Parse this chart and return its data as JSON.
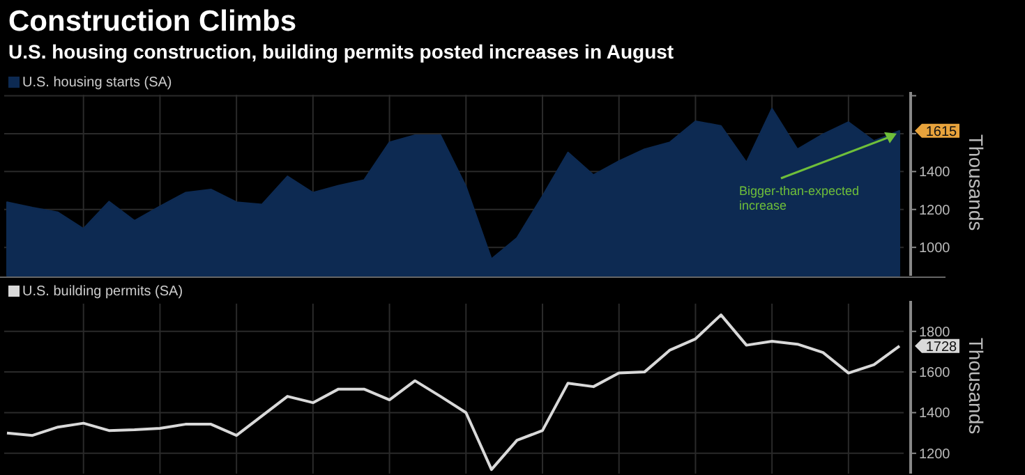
{
  "chart_data": [
    {
      "type": "area",
      "title": "Construction Climbs",
      "subtitle": "U.S. housing construction, building permits posted increases in August",
      "ylabel": "Thousands",
      "legend": "top left",
      "grid": true,
      "categories": [
        null,
        null,
        null,
        null,
        null,
        null,
        null,
        null,
        null,
        null,
        null,
        null,
        null,
        null,
        null,
        null,
        null,
        null,
        null,
        null,
        null,
        null,
        null,
        null,
        null,
        null,
        null,
        null,
        null,
        null,
        null,
        null,
        null,
        null,
        null,
        null
      ],
      "series": [
        {
          "name": "U.S. housing starts (SA)",
          "color": "#0d2a52",
          "values": [
            1239,
            1210,
            1185,
            1099,
            1242,
            1141,
            1217,
            1289,
            1306,
            1239,
            1227,
            1375,
            1289,
            1326,
            1355,
            1555,
            1592,
            1592,
            1321,
            939,
            1050,
            1271,
            1501,
            1382,
            1456,
            1518,
            1555,
            1666,
            1641,
            1449,
            1733,
            1518,
            1597,
            1661,
            1562,
            1615
          ],
          "value_labels": [
            null,
            null,
            null,
            null,
            null,
            null,
            null,
            null,
            null,
            null,
            null,
            null,
            null,
            null,
            null,
            null,
            null,
            null,
            null,
            null,
            null,
            null,
            null,
            null,
            null,
            null,
            null,
            null,
            null,
            null,
            null,
            null,
            null,
            null,
            null,
            "1615"
          ]
        }
      ],
      "ylim": [
        850,
        1820
      ],
      "yticks": [
        1000,
        1200,
        1400,
        {
          "value": 1600,
          "label": null
        },
        {
          "value": 1800,
          "label": null
        }
      ],
      "annotations": [
        "Bigger-than-expected increase"
      ]
    },
    {
      "type": "line",
      "ylabel": "Thousands",
      "legend": "top left",
      "grid": true,
      "categories": [
        null,
        null,
        null,
        null,
        null,
        null,
        null,
        null,
        null,
        null,
        null,
        null,
        null,
        null,
        null,
        null,
        null,
        null,
        null,
        null,
        null,
        null,
        null,
        null,
        null,
        null,
        null,
        null,
        null,
        null,
        null,
        null,
        null,
        null,
        null,
        null
      ],
      "series": [
        {
          "name": "U.S. building permits (SA)",
          "color": "#d9d9d9",
          "values": [
            1300,
            1288,
            1329,
            1348,
            1312,
            1316,
            1323,
            1343,
            1343,
            1288,
            1384,
            1480,
            1449,
            1516,
            1516,
            1463,
            1557,
            1480,
            1400,
            1120,
            1264,
            1312,
            1545,
            1528,
            1595,
            1600,
            1708,
            1763,
            1881,
            1732,
            1751,
            1737,
            1696,
            1595,
            1636,
            1728
          ],
          "value_labels": [
            null,
            null,
            null,
            null,
            null,
            null,
            null,
            null,
            null,
            null,
            null,
            null,
            null,
            null,
            null,
            null,
            null,
            null,
            null,
            null,
            null,
            null,
            null,
            null,
            null,
            null,
            null,
            null,
            null,
            null,
            null,
            null,
            null,
            null,
            null,
            "1728"
          ]
        }
      ],
      "ylim": [
        1100,
        1950
      ],
      "yticks": [
        1200,
        1400,
        1600,
        1800
      ]
    }
  ]
}
